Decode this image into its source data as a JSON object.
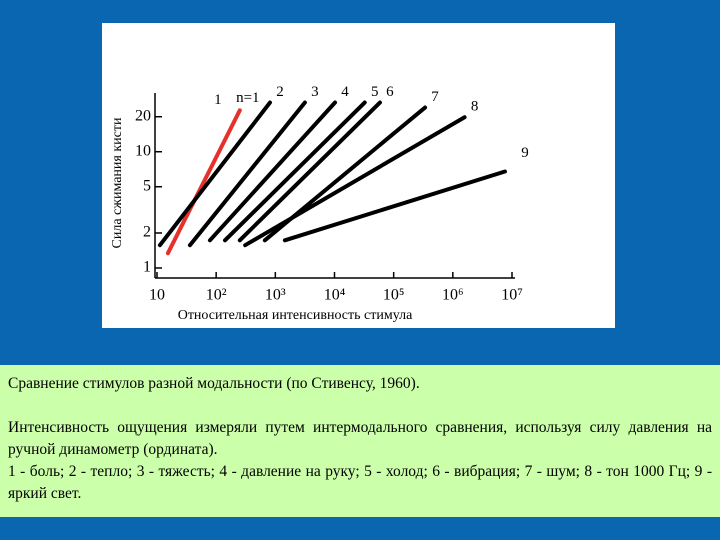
{
  "chart_data": {
    "type": "line",
    "xlabel": "Относительная интенсивность стимула",
    "ylabel": "Сила сжимания кисти",
    "annotation": "n=1",
    "xscale": "log",
    "yscale": "log",
    "xlim": [
      10,
      10000000
    ],
    "ylim": [
      0.82,
      32
    ],
    "xticks": [
      10,
      {
        "value": 100,
        "label": "10²"
      },
      {
        "value": 1000,
        "label": "10³"
      },
      {
        "value": 10000,
        "label": "10⁴"
      },
      {
        "value": 100000,
        "label": "10⁵"
      },
      {
        "value": 1000000,
        "label": "10⁶"
      },
      {
        "value": 10000000,
        "label": "10⁷"
      }
    ],
    "yticks": [
      1,
      2,
      5,
      10,
      20
    ],
    "series": [
      {
        "name": "1",
        "color": "#e8302a",
        "x": [
          15.3,
          251
        ],
        "values": [
          1.34,
          22.7
        ]
      },
      {
        "name": "2",
        "color": "#000000",
        "x": [
          11.2,
          813
        ],
        "values": [
          1.57,
          26.5
        ]
      },
      {
        "name": "3",
        "color": "#000000",
        "x": [
          36,
          3160
        ],
        "values": [
          1.57,
          26.5
        ]
      },
      {
        "name": "4",
        "color": "#000000",
        "x": [
          78.5,
          10200
        ],
        "values": [
          1.73,
          26.5
        ]
      },
      {
        "name": "5",
        "color": "#000000",
        "x": [
          141,
          32400
        ],
        "values": [
          1.73,
          26.5
        ]
      },
      {
        "name": "6",
        "color": "#000000",
        "x": [
          251,
          58600
        ],
        "values": [
          1.73,
          26.5
        ]
      },
      {
        "name": "7",
        "color": "#000000",
        "x": [
          665,
          339000
        ],
        "values": [
          1.73,
          24
        ]
      },
      {
        "name": "8",
        "color": "#000000",
        "x": [
          309,
          1580000
        ],
        "values": [
          1.57,
          19.8
        ]
      },
      {
        "name": "9",
        "color": "#000000",
        "x": [
          1450,
          7600000
        ],
        "values": [
          1.73,
          6.76
        ]
      }
    ]
  },
  "caption": {
    "title": "Сравнение стимулов разной модальности (по Стивенсу, 1960).",
    "paragraphs": [
      "Интенсивность ощущения измеряли путем интермодального сравнения, используя силу давления на ручной динамометр (ордината).",
      "1 - боль; 2 - тепло; 3 - тяжесть; 4 - давление на руку; 5 - холод; 6 - вибрация; 7 - шум; 8 - тон 1000 Гц; 9 - яркий свет."
    ]
  }
}
